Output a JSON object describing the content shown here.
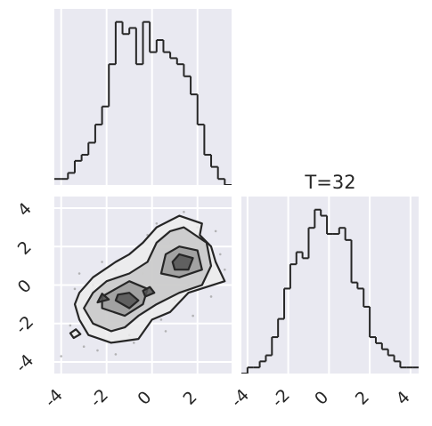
{
  "chart_data": {
    "type": "corner",
    "title": "T=32",
    "style": {
      "axes_bg": "#e9e9f1",
      "grid": "#ffffff",
      "line": "#262626"
    },
    "hist_x": {
      "type": "histogram",
      "edges": [
        -4.3,
        -4.0,
        -3.7,
        -3.4,
        -3.1,
        -2.8,
        -2.5,
        -2.2,
        -1.9,
        -1.6,
        -1.3,
        -1.0,
        -0.7,
        -0.4,
        -0.1,
        0.2,
        0.5,
        0.8,
        1.1,
        1.4,
        1.7,
        2.0,
        2.3,
        2.6,
        2.9,
        3.2,
        3.5
      ],
      "counts": [
        1,
        1,
        2,
        4,
        5,
        7,
        10,
        13,
        20,
        27,
        25,
        26,
        20,
        27,
        22,
        24,
        22,
        21,
        20,
        18,
        15,
        10,
        5,
        3,
        1,
        0
      ],
      "xlim": [
        -4.3,
        3.5
      ]
    },
    "hist_y": {
      "type": "histogram",
      "edges": [
        -4.3,
        -4.0,
        -3.7,
        -3.4,
        -3.1,
        -2.8,
        -2.5,
        -2.2,
        -1.9,
        -1.6,
        -1.3,
        -1.0,
        -0.7,
        -0.4,
        -0.1,
        0.2,
        0.5,
        0.8,
        1.1,
        1.4,
        1.7,
        2.0,
        2.3,
        2.6,
        2.9,
        3.2,
        3.5,
        3.8,
        4.1,
        4.4
      ],
      "counts": [
        0,
        1,
        1,
        2,
        3,
        6,
        9,
        14,
        18,
        20,
        19,
        24,
        27,
        26,
        23,
        23,
        24,
        22,
        15,
        14,
        11,
        6,
        5,
        4,
        3,
        2,
        1,
        1,
        1
      ],
      "xlim": [
        -4.3,
        4.4
      ],
      "xticks": [
        "-4",
        "-2",
        "0",
        "2",
        "4"
      ]
    },
    "scatter_2d": {
      "type": "contour",
      "xlim": [
        -4.3,
        3.5
      ],
      "ylim": [
        -4.6,
        4.6
      ],
      "xticks": [
        "-4",
        "-2",
        "0",
        "2"
      ],
      "yticks": [
        "4",
        "2",
        "0",
        "-2",
        "-4"
      ],
      "contour_levels": [
        {
          "label": "outer",
          "fill": "#ececec",
          "paths": [
            [
              [
                -3.2,
                -1.8
              ],
              [
                -2.8,
                -2.6
              ],
              [
                -1.8,
                -3.0
              ],
              [
                -0.6,
                -2.8
              ],
              [
                0.0,
                -1.8
              ],
              [
                0.8,
                -1.4
              ],
              [
                1.6,
                -0.4
              ],
              [
                3.2,
                0.2
              ],
              [
                2.8,
                1.2
              ],
              [
                2.6,
                2.0
              ],
              [
                2.1,
                2.6
              ],
              [
                2.2,
                3.2
              ],
              [
                1.2,
                3.6
              ],
              [
                0.2,
                3.0
              ],
              [
                -0.4,
                2.2
              ],
              [
                -1.0,
                1.6
              ],
              [
                -1.6,
                1.2
              ],
              [
                -2.6,
                0.4
              ],
              [
                -3.2,
                -0.4
              ],
              [
                -3.4,
                -1.0
              ]
            ],
            [
              [
                -3.45,
                -2.75
              ],
              [
                -3.15,
                -2.55
              ],
              [
                -3.35,
                -2.3
              ],
              [
                -3.6,
                -2.5
              ]
            ]
          ]
        },
        {
          "label": "middle",
          "fill": "#c8c8c8",
          "paths": [
            [
              [
                -2.6,
                -2.0
              ],
              [
                -1.8,
                -2.4
              ],
              [
                -1.2,
                -2.2
              ],
              [
                -0.6,
                -1.6
              ],
              [
                0.2,
                -1.0
              ],
              [
                1.2,
                -0.4
              ],
              [
                2.2,
                0.0
              ],
              [
                2.6,
                1.0
              ],
              [
                2.4,
                2.2
              ],
              [
                1.4,
                3.0
              ],
              [
                0.8,
                2.8
              ],
              [
                0.2,
                2.2
              ],
              [
                -0.2,
                1.2
              ],
              [
                -1.0,
                0.6
              ],
              [
                -2.0,
                0.2
              ],
              [
                -2.6,
                -0.4
              ],
              [
                -3.0,
                -1.2
              ]
            ]
          ]
        },
        {
          "label": "inner",
          "fill": "#9a9a9a",
          "paths": [
            [
              [
                -2.2,
                -1.2
              ],
              [
                -1.2,
                -1.6
              ],
              [
                -0.4,
                -1.0
              ],
              [
                -0.2,
                -0.2
              ],
              [
                -1.0,
                0.2
              ],
              [
                -1.6,
                -0.2
              ],
              [
                -2.2,
                -0.6
              ]
            ],
            [
              [
                0.4,
                0.6
              ],
              [
                1.2,
                0.4
              ],
              [
                2.2,
                0.8
              ],
              [
                2.0,
                1.8
              ],
              [
                1.2,
                2.0
              ],
              [
                0.6,
                1.6
              ]
            ]
          ]
        },
        {
          "label": "core",
          "fill": "#555555",
          "paths": [
            [
              [
                -1.6,
                -0.8
              ],
              [
                -1.0,
                -1.2
              ],
              [
                -0.6,
                -0.8
              ],
              [
                -1.0,
                -0.4
              ],
              [
                -1.5,
                -0.5
              ]
            ],
            [
              [
                1.0,
                0.8
              ],
              [
                1.6,
                0.8
              ],
              [
                1.8,
                1.4
              ],
              [
                1.2,
                1.6
              ],
              [
                0.9,
                1.2
              ]
            ],
            [
              [
                -2.4,
                -0.9
              ],
              [
                -1.9,
                -0.75
              ],
              [
                -2.2,
                -0.45
              ]
            ],
            [
              [
                -0.3,
                -0.6
              ],
              [
                0.1,
                -0.4
              ],
              [
                -0.1,
                -0.1
              ],
              [
                -0.4,
                -0.3
              ]
            ]
          ]
        }
      ],
      "scatter_points": [
        [
          -4.0,
          -3.7
        ],
        [
          -3.6,
          -2.1
        ],
        [
          -3.0,
          -3.2
        ],
        [
          -2.4,
          -3.4
        ],
        [
          -1.6,
          -3.6
        ],
        [
          -0.8,
          -3.0
        ],
        [
          0.6,
          -2.4
        ],
        [
          1.8,
          -1.6
        ],
        [
          2.6,
          -0.6
        ],
        [
          3.2,
          0.8
        ],
        [
          -3.2,
          0.6
        ],
        [
          -2.2,
          1.2
        ],
        [
          -0.8,
          1.8
        ],
        [
          0.2,
          3.2
        ],
        [
          1.4,
          3.8
        ],
        [
          2.8,
          2.8
        ],
        [
          3.0,
          1.6
        ],
        [
          -2.8,
          -1.0
        ],
        [
          -1.0,
          -2.6
        ],
        [
          0.4,
          -1.8
        ],
        [
          1.0,
          -0.8
        ],
        [
          2.2,
          0.4
        ],
        [
          -0.2,
          2.6
        ],
        [
          -1.6,
          0.8
        ],
        [
          -2.6,
          0.0
        ],
        [
          0.8,
          2.2
        ],
        [
          2.0,
          3.0
        ],
        [
          -3.4,
          -0.2
        ],
        [
          1.6,
          0.0
        ],
        [
          -0.4,
          0.6
        ]
      ]
    }
  }
}
